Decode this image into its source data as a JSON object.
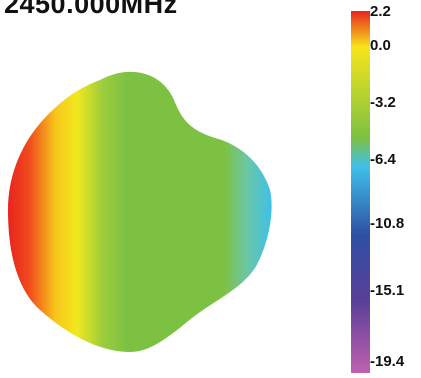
{
  "title": "2450.000MHz",
  "chart_data": {
    "type": "heatmap",
    "title": "2450.000MHz",
    "colorbar": {
      "ticks": [
        "2.2",
        "0.0",
        "-3.2",
        "-6.4",
        "-10.8",
        "-15.1",
        "-19.4"
      ],
      "range": [
        -19.4,
        2.2
      ],
      "colors": [
        "#e8241f",
        "#f7e51b",
        "#7dc142",
        "#3fc0e8",
        "#2e4fa3",
        "#5a3f98",
        "#c060b0"
      ]
    },
    "colorbar_label": "",
    "shape": "3D radiation pattern (top view)",
    "dominant_value": -3.2
  }
}
